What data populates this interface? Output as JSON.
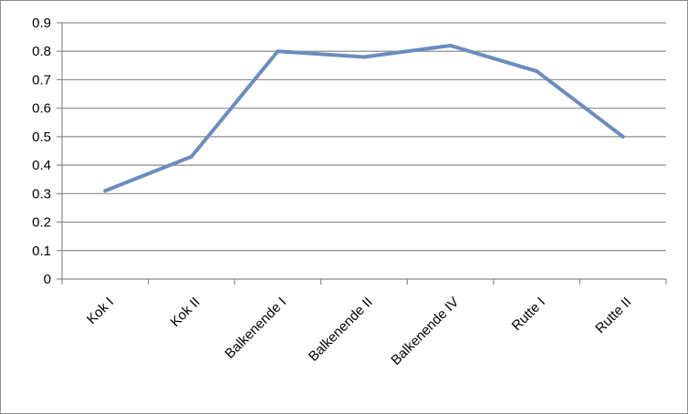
{
  "chart_data": {
    "type": "line",
    "title": "",
    "xlabel": "",
    "ylabel": "",
    "categories": [
      "Kok I",
      "Kok II",
      "Balkenende I",
      "Balkenende II",
      "Balkenende IV",
      "Rutte I",
      "Rutte II"
    ],
    "series": [
      {
        "values": [
          0.31,
          0.43,
          0.8,
          0.78,
          0.82,
          0.73,
          0.5
        ]
      }
    ],
    "ylim": [
      0,
      0.9
    ],
    "yticks": [
      0,
      0.1,
      0.2,
      0.3,
      0.4,
      0.5,
      0.6,
      0.7,
      0.8,
      0.9
    ],
    "ytick_labels": [
      "0",
      "0.1",
      "0.2",
      "0.3",
      "0.4",
      "0.5",
      "0.6",
      "0.7",
      "0.8",
      "0.9"
    ],
    "grid": true,
    "legend": "none",
    "colors": {
      "line": "#6b8cbe",
      "grid": "#8c8c8c",
      "axis": "#8c8c8c"
    }
  }
}
